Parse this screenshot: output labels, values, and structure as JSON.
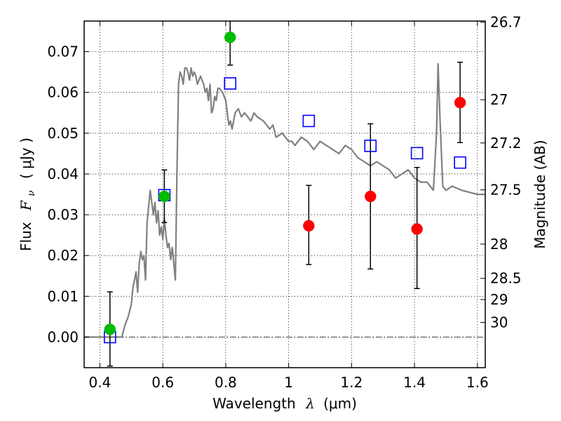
{
  "chart_data": {
    "type": "scatter",
    "xlabel": "Wavelength  λ (μm)",
    "xlabel_parts": {
      "text": "Wavelength",
      "symbol": "λ",
      "unit": "(μm)"
    },
    "ylabel": "Flux  Fν  ( μJy )",
    "ylabel_parts": {
      "text": "Flux",
      "symbol": "F",
      "subscript": "ν",
      "unit": "( μJy )"
    },
    "y2label": "Magnitude (AB)",
    "xlim": [
      0.35,
      1.625
    ],
    "ylim": [
      -0.0075,
      0.0775
    ],
    "grid": true,
    "xticks": [
      {
        "value": 0.4,
        "label": "0.4"
      },
      {
        "value": 0.6,
        "label": "0.6"
      },
      {
        "value": 0.8,
        "label": "0.8"
      },
      {
        "value": 1.0,
        "label": "1"
      },
      {
        "value": 1.2,
        "label": "1.2"
      },
      {
        "value": 1.4,
        "label": "1.4"
      },
      {
        "value": 1.6,
        "label": "1.6"
      }
    ],
    "yticks": [
      {
        "value": 0.0,
        "label": "0.00"
      },
      {
        "value": 0.01,
        "label": "0.01"
      },
      {
        "value": 0.02,
        "label": "0.02"
      },
      {
        "value": 0.03,
        "label": "0.03"
      },
      {
        "value": 0.04,
        "label": "0.04"
      },
      {
        "value": 0.05,
        "label": "0.05"
      },
      {
        "value": 0.06,
        "label": "0.06"
      },
      {
        "value": 0.07,
        "label": "0.07"
      }
    ],
    "y2ticks": [
      {
        "flux": 0.0772,
        "label": "26.7"
      },
      {
        "flux": 0.0582,
        "label": "27"
      },
      {
        "flux": 0.0476,
        "label": "27.2"
      },
      {
        "flux": 0.0361,
        "label": "27.5"
      },
      {
        "flux": 0.0228,
        "label": "28"
      },
      {
        "flux": 0.0144,
        "label": "28.5"
      },
      {
        "flux": 0.0092,
        "label": "29"
      },
      {
        "flux": 0.0036,
        "label": "30"
      }
    ],
    "series": [
      {
        "name": "template spectrum",
        "kind": "line",
        "color": "#808080",
        "x": [
          0.35,
          0.47,
          0.48,
          0.49,
          0.5,
          0.505,
          0.51,
          0.515,
          0.52,
          0.525,
          0.53,
          0.535,
          0.54,
          0.545,
          0.55,
          0.56,
          0.57,
          0.575,
          0.58,
          0.585,
          0.59,
          0.595,
          0.6,
          0.605,
          0.61,
          0.615,
          0.62,
          0.625,
          0.63,
          0.635,
          0.64,
          0.645,
          0.65,
          0.655,
          0.66,
          0.665,
          0.67,
          0.675,
          0.68,
          0.685,
          0.69,
          0.695,
          0.7,
          0.705,
          0.71,
          0.715,
          0.72,
          0.725,
          0.73,
          0.735,
          0.74,
          0.745,
          0.75,
          0.755,
          0.76,
          0.765,
          0.77,
          0.775,
          0.78,
          0.79,
          0.8,
          0.805,
          0.81,
          0.815,
          0.82,
          0.83,
          0.84,
          0.85,
          0.86,
          0.87,
          0.88,
          0.89,
          0.9,
          0.92,
          0.94,
          0.95,
          0.96,
          0.98,
          1.0,
          1.01,
          1.02,
          1.04,
          1.06,
          1.08,
          1.1,
          1.12,
          1.14,
          1.16,
          1.18,
          1.2,
          1.22,
          1.24,
          1.26,
          1.28,
          1.3,
          1.32,
          1.34,
          1.36,
          1.38,
          1.4,
          1.42,
          1.44,
          1.46,
          1.47,
          1.475,
          1.48,
          1.49,
          1.5,
          1.52,
          1.55,
          1.6,
          1.625
        ],
        "y": [
          0.0,
          0.0,
          0.003,
          0.005,
          0.008,
          0.012,
          0.014,
          0.016,
          0.011,
          0.018,
          0.021,
          0.019,
          0.02,
          0.014,
          0.028,
          0.036,
          0.03,
          0.033,
          0.028,
          0.031,
          0.025,
          0.027,
          0.024,
          0.029,
          0.025,
          0.022,
          0.023,
          0.019,
          0.022,
          0.018,
          0.014,
          0.04,
          0.062,
          0.065,
          0.064,
          0.062,
          0.066,
          0.066,
          0.065,
          0.063,
          0.066,
          0.064,
          0.065,
          0.064,
          0.062,
          0.063,
          0.064,
          0.063,
          0.062,
          0.06,
          0.061,
          0.058,
          0.062,
          0.055,
          0.056,
          0.059,
          0.058,
          0.061,
          0.061,
          0.06,
          0.058,
          0.055,
          0.052,
          0.053,
          0.051,
          0.055,
          0.056,
          0.054,
          0.055,
          0.054,
          0.053,
          0.055,
          0.054,
          0.053,
          0.051,
          0.052,
          0.049,
          0.05,
          0.048,
          0.048,
          0.047,
          0.049,
          0.048,
          0.046,
          0.048,
          0.047,
          0.046,
          0.045,
          0.047,
          0.046,
          0.044,
          0.043,
          0.042,
          0.043,
          0.042,
          0.041,
          0.039,
          0.04,
          0.041,
          0.039,
          0.038,
          0.038,
          0.036,
          0.05,
          0.067,
          0.056,
          0.037,
          0.036,
          0.037,
          0.036,
          0.035,
          0.035
        ]
      },
      {
        "name": "measured (green)",
        "kind": "points",
        "color": "#00bb00",
        "x": [
          0.432,
          0.605,
          0.814
        ],
        "y": [
          0.0019,
          0.0345,
          0.0735
        ],
        "yerr_low": [
          -0.0071,
          0.0281,
          0.0667
        ],
        "yerr_high": [
          0.0111,
          0.041,
          0.078
        ]
      },
      {
        "name": "measured (red)",
        "kind": "points",
        "color": "#ff0000",
        "x": [
          1.064,
          1.26,
          1.408,
          1.545
        ],
        "y": [
          0.0273,
          0.0345,
          0.0265,
          0.0575
        ],
        "yerr_low": [
          0.0178,
          0.0167,
          0.0119,
          0.0477
        ],
        "yerr_high": [
          0.0372,
          0.0523,
          0.0416,
          0.0674
        ]
      },
      {
        "name": "model photometry",
        "kind": "open-squares",
        "color": "#0000ff",
        "x": [
          0.432,
          0.605,
          0.814,
          1.064,
          1.26,
          1.408,
          1.545
        ],
        "y": [
          0.0,
          0.0348,
          0.0622,
          0.053,
          0.0469,
          0.0451,
          0.0428
        ]
      }
    ]
  }
}
